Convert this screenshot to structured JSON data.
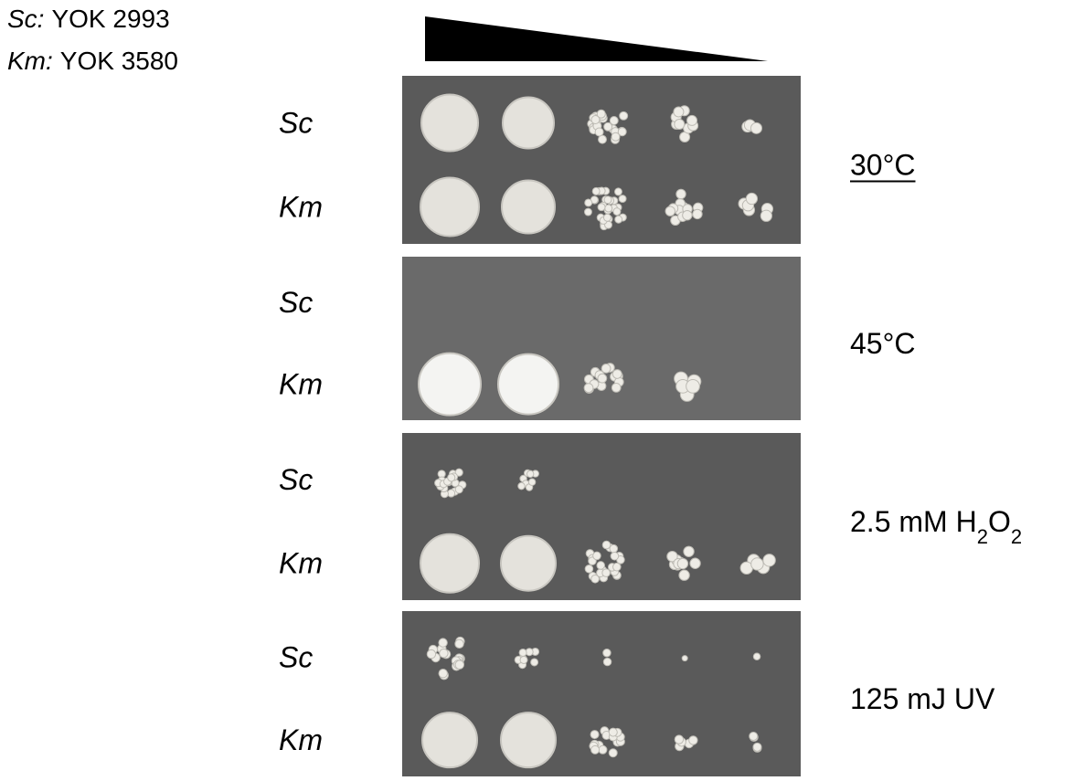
{
  "strains": [
    {
      "abbrev": "Sc:",
      "name": "YOK 2993"
    },
    {
      "abbrev": "Km:",
      "name": "YOK 3580"
    }
  ],
  "panels": [
    {
      "rows": [
        "Sc",
        "Km"
      ],
      "condition": [
        {
          "text": "30°C"
        }
      ],
      "underline": true
    },
    {
      "rows": [
        "Sc",
        "Km"
      ],
      "condition": [
        {
          "text": "45°C"
        }
      ]
    },
    {
      "rows": [
        "Sc",
        "Km"
      ],
      "condition": [
        {
          "text": "2.5 mM H"
        },
        {
          "sub": "2"
        },
        {
          "text": "O"
        },
        {
          "sub": "2"
        }
      ]
    },
    {
      "rows": [
        "Sc",
        "Km"
      ],
      "condition": [
        {
          "text": "125 mJ UV"
        }
      ]
    }
  ]
}
